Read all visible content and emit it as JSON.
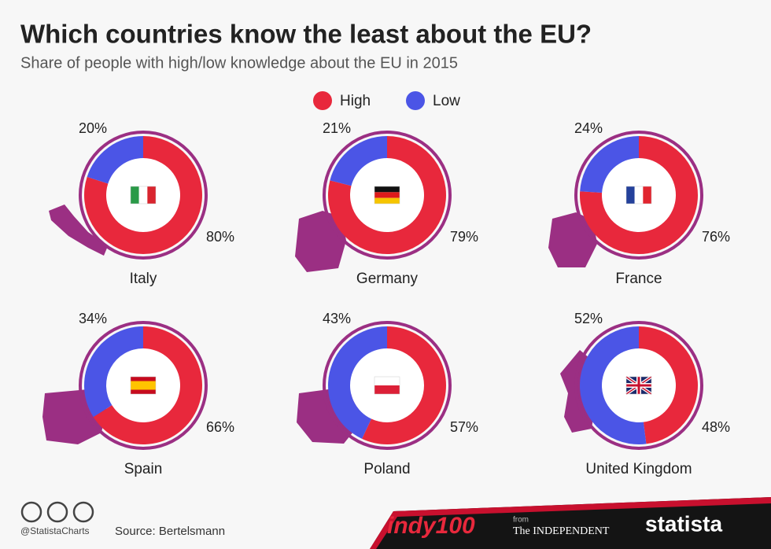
{
  "chart_data": {
    "type": "donut",
    "title": "Which countries know the least about the EU?",
    "subtitle": "Share of people with high/low knowledge about the EU in 2015",
    "categories": [
      "Italy",
      "Germany",
      "France",
      "Spain",
      "Poland",
      "United Kingdom"
    ],
    "series": [
      {
        "name": "High",
        "color": "#e8283c",
        "values": [
          80,
          79,
          76,
          66,
          57,
          48
        ],
        "value_labels": [
          "80%",
          "79%",
          "76%",
          "66%",
          "57%",
          "48%"
        ]
      },
      {
        "name": "Low",
        "color": "#4b55e6",
        "values": [
          20,
          21,
          24,
          34,
          43,
          52
        ],
        "value_labels": [
          "20%",
          "21%",
          "24%",
          "34%",
          "43%",
          "52%"
        ]
      }
    ],
    "legend": "top"
  },
  "footer": {
    "credit": "@StatistaCharts",
    "source": "Source: Bertelsmann",
    "brand": "indy100",
    "from": "from",
    "partner": "The INDEPENDENT",
    "publisher": "statista"
  }
}
